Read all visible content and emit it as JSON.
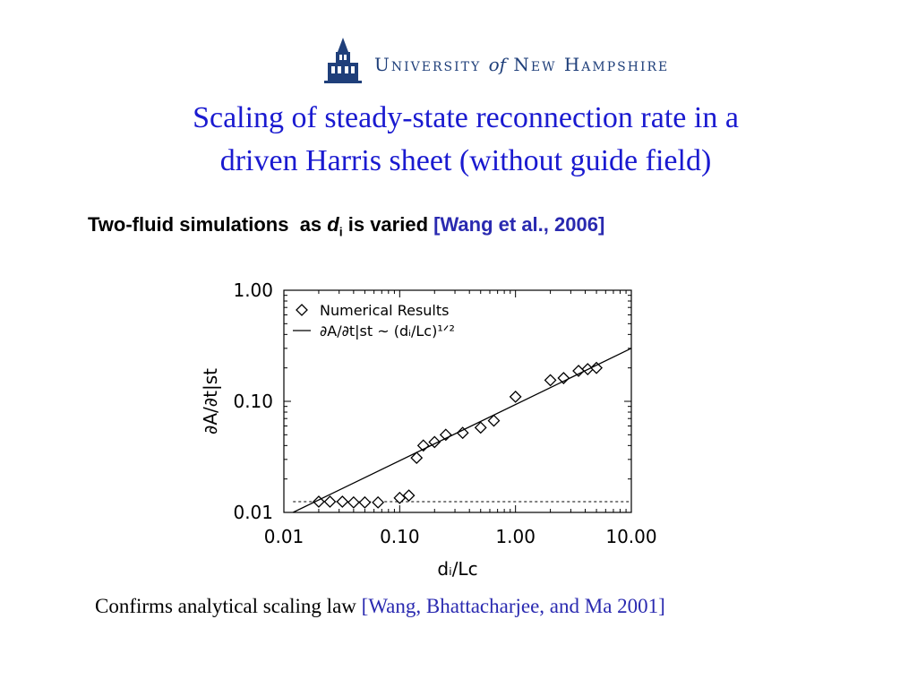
{
  "logo": {
    "text_university": "University",
    "text_of": "of",
    "text_rest": "New Hampshire",
    "icon": "building-tower-icon",
    "color": "#1f3f7a"
  },
  "title": {
    "line1": "Scaling of steady-state reconnection rate in a",
    "line2": "driven Harris sheet (without guide field)",
    "color": "#1a1ad0"
  },
  "subtitle": {
    "part1": "Two-fluid simulations  as ",
    "var": "d",
    "sub": "i",
    "part2": " is varied ",
    "ref": "[Wang et al., 2006]"
  },
  "footer": {
    "text": "Confirms analytical scaling law ",
    "ref": "[Wang, Bhattacharjee, and Ma 2001]"
  },
  "chart_data": {
    "type": "scatter",
    "xscale": "log",
    "yscale": "log",
    "xlim": [
      0.01,
      10.0
    ],
    "ylim": [
      0.01,
      1.0
    ],
    "xticks": [
      "0.01",
      "0.10",
      "1.00",
      "10.00"
    ],
    "yticks": [
      "0.01",
      "0.10",
      "1.00"
    ],
    "xlabel": "dᵢ/Lᴄ",
    "ylabel": "∂A/∂t|st",
    "legend_position": "top-left",
    "legend": [
      {
        "label": "Numerical Results",
        "marker": "diamond"
      },
      {
        "label": "∂A/∂t|st ~ (dᵢ/Lᴄ)¹ᐟ²",
        "marker": "line"
      }
    ],
    "series": [
      {
        "name": "Numerical Results",
        "marker": "diamond",
        "points": [
          [
            0.02,
            0.0125
          ],
          [
            0.025,
            0.0125
          ],
          [
            0.032,
            0.0125
          ],
          [
            0.04,
            0.0123
          ],
          [
            0.05,
            0.0123
          ],
          [
            0.065,
            0.0123
          ],
          [
            0.1,
            0.0135
          ],
          [
            0.12,
            0.0142
          ],
          [
            0.14,
            0.031
          ],
          [
            0.16,
            0.04
          ],
          [
            0.2,
            0.043
          ],
          [
            0.25,
            0.05
          ],
          [
            0.35,
            0.052
          ],
          [
            0.5,
            0.058
          ],
          [
            0.65,
            0.067
          ],
          [
            1.0,
            0.11
          ],
          [
            2.0,
            0.155
          ],
          [
            2.6,
            0.162
          ],
          [
            3.5,
            0.188
          ],
          [
            4.2,
            0.195
          ],
          [
            5.0,
            0.2
          ]
        ]
      },
      {
        "name": "∂A/∂t|st ~ (dᵢ/Lᴄ)¹ᐟ²",
        "marker": "line",
        "points": [
          [
            0.012,
            0.01
          ],
          [
            10.0,
            0.3
          ]
        ]
      }
    ],
    "baseline": {
      "style": "dashed",
      "y": 0.0125,
      "x_range": [
        0.012,
        10.0
      ]
    }
  }
}
